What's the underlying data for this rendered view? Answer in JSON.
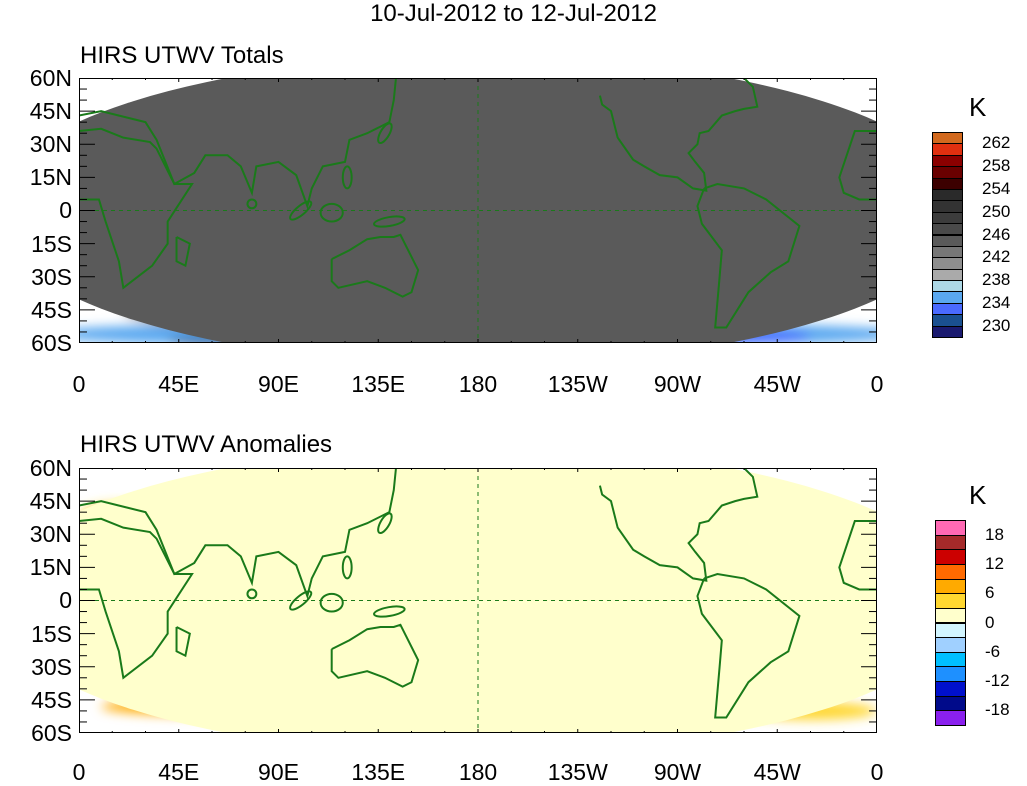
{
  "title": "10-Jul-2012 to 12-Jul-2012",
  "panels": [
    {
      "title": "HIRS UTWV Totals",
      "units": "K",
      "colorbar": {
        "colors": [
          "#d2691e",
          "#e03010",
          "#8b0000",
          "#6a0000",
          "#3c0000",
          "#2a2a2a",
          "#333333",
          "#3c3c3c",
          "#4a4a4a",
          "#5a5a5a",
          "#777777",
          "#8e8e8e",
          "#aaaaaa",
          "#add8e6",
          "#5aa8f0",
          "#4a6aff",
          "#1a5090",
          "#1a1a70"
        ],
        "labels": [
          "262",
          "258",
          "254",
          "250",
          "246",
          "242",
          "238",
          "234",
          "230"
        ]
      }
    },
    {
      "title": "HIRS UTWV Anomalies",
      "units": "K",
      "colorbar": {
        "colors": [
          "#ff69b4",
          "#a52a2a",
          "#cc0000",
          "#ff6a00",
          "#ffaa00",
          "#ffd730",
          "#ffffcc",
          "#d2f5ff",
          "#a0d0ff",
          "#00bfff",
          "#1e90ff",
          "#0010cc",
          "#000a8a",
          "#8a20ee"
        ],
        "labels": [
          "18",
          "12",
          "6",
          "0",
          "-6",
          "-12",
          "-18"
        ]
      }
    }
  ],
  "axes": {
    "lat_labels": [
      "60N",
      "45N",
      "30N",
      "15N",
      "0",
      "15S",
      "30S",
      "45S",
      "60S"
    ],
    "lon_labels": [
      "0",
      "45E",
      "90E",
      "135E",
      "180",
      "135W",
      "90W",
      "45W",
      "0"
    ]
  }
}
